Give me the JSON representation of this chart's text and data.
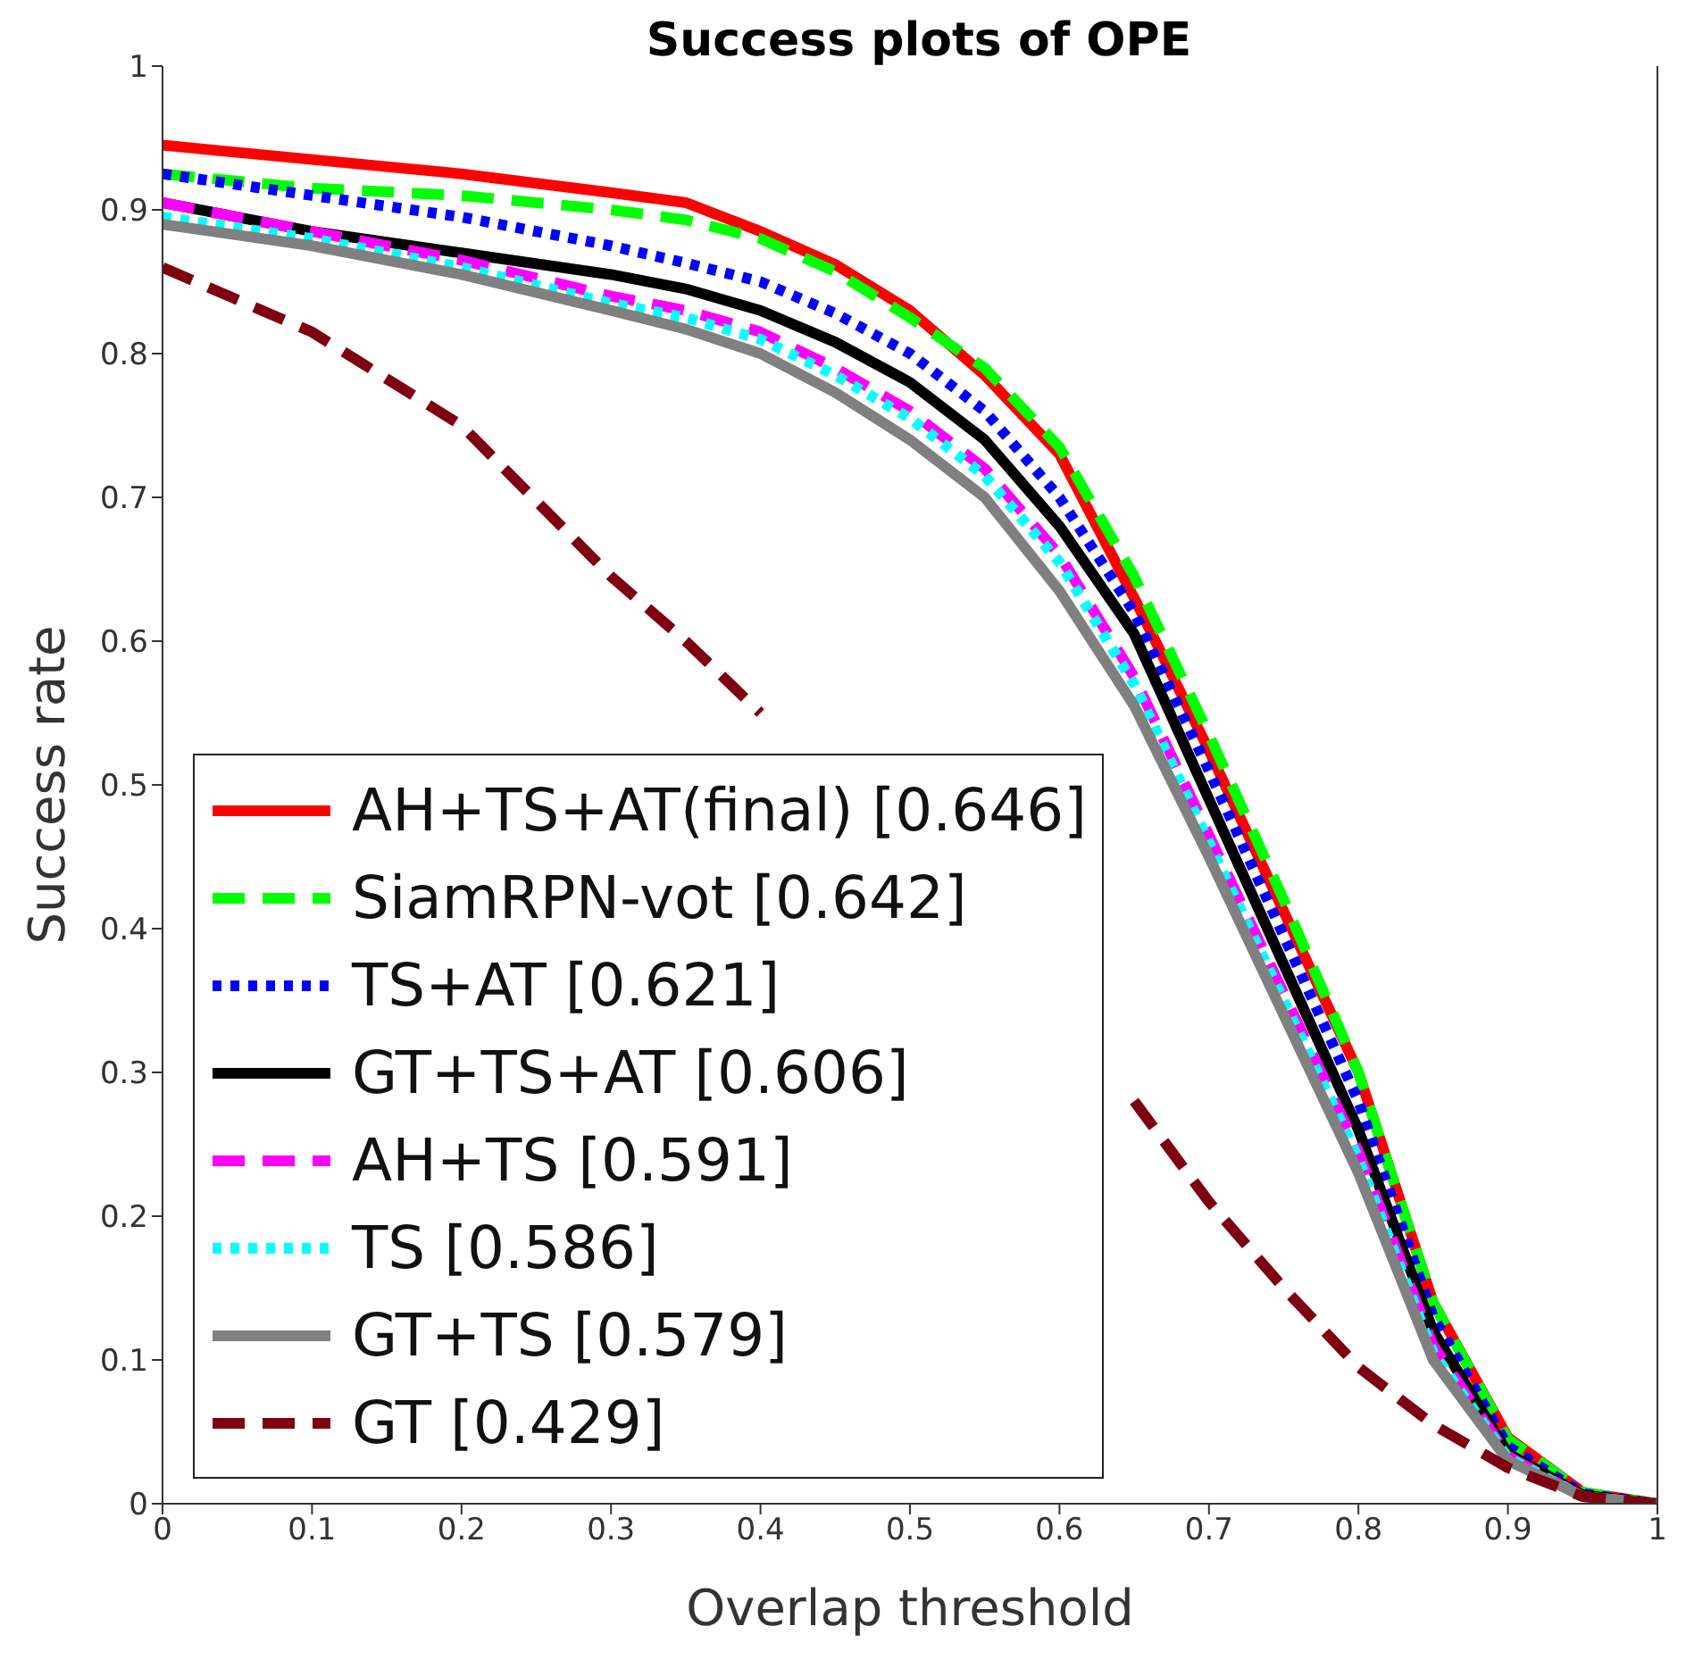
{
  "chart_data": {
    "type": "line",
    "title": "Success plots of OPE",
    "xlabel": "Overlap threshold",
    "ylabel": "Success rate",
    "x": [
      0,
      0.1,
      0.2,
      0.3,
      0.35,
      0.4,
      0.45,
      0.5,
      0.55,
      0.6,
      0.65,
      0.7,
      0.75,
      0.8,
      0.85,
      0.9,
      0.95,
      1
    ],
    "series": [
      {
        "name": "AH+TS+AT(final) [0.646]",
        "color": "#ff0000",
        "line_style": "solid",
        "values": [
          0.945,
          0.935,
          0.925,
          0.912,
          0.905,
          0.885,
          0.862,
          0.83,
          0.785,
          0.73,
          0.63,
          0.524,
          0.412,
          0.3,
          0.14,
          0.046,
          0.008,
          0
        ]
      },
      {
        "name": "SiamRPN-vot [0.642]",
        "color": "#00ff00",
        "line_style": "dashed",
        "values": [
          0.925,
          0.915,
          0.91,
          0.9,
          0.893,
          0.88,
          0.857,
          0.825,
          0.79,
          0.735,
          0.645,
          0.535,
          0.42,
          0.3,
          0.14,
          0.045,
          0.008,
          0
        ]
      },
      {
        "name": "TS+AT [0.621]",
        "color": "#0000ff",
        "line_style": "dotted",
        "values": [
          0.925,
          0.91,
          0.895,
          0.875,
          0.863,
          0.85,
          0.828,
          0.8,
          0.76,
          0.7,
          0.62,
          0.51,
          0.395,
          0.28,
          0.13,
          0.04,
          0.007,
          0
        ]
      },
      {
        "name": "GT+TS+AT [0.606]",
        "color": "#000000",
        "line_style": "solid",
        "values": [
          0.905,
          0.885,
          0.87,
          0.855,
          0.845,
          0.83,
          0.808,
          0.78,
          0.74,
          0.68,
          0.605,
          0.49,
          0.375,
          0.26,
          0.12,
          0.035,
          0.006,
          0
        ]
      },
      {
        "name": "AH+TS [0.591]",
        "color": "#ff00ff",
        "line_style": "dashed",
        "values": [
          0.905,
          0.885,
          0.865,
          0.84,
          0.83,
          0.815,
          0.79,
          0.76,
          0.72,
          0.66,
          0.575,
          0.465,
          0.355,
          0.245,
          0.11,
          0.033,
          0.005,
          0
        ]
      },
      {
        "name": "TS [0.586]",
        "color": "#00ffff",
        "line_style": "dotted",
        "values": [
          0.895,
          0.88,
          0.86,
          0.835,
          0.825,
          0.81,
          0.785,
          0.755,
          0.715,
          0.655,
          0.57,
          0.46,
          0.35,
          0.24,
          0.105,
          0.032,
          0.005,
          0
        ]
      },
      {
        "name": "GT+TS [0.579]",
        "color": "#808080",
        "line_style": "solid",
        "values": [
          0.89,
          0.875,
          0.855,
          0.83,
          0.817,
          0.8,
          0.773,
          0.74,
          0.7,
          0.635,
          0.555,
          0.45,
          0.34,
          0.23,
          0.1,
          0.03,
          0.005,
          0
        ]
      },
      {
        "name": "GT [0.429]",
        "color": "#7f0010",
        "line_style": "dashed",
        "values": [
          0.86,
          0.815,
          0.75,
          0.645,
          0.6,
          0.55,
          null,
          null,
          null,
          null,
          0.28,
          0.21,
          0.15,
          0.095,
          0.055,
          0.025,
          0.005,
          0
        ]
      }
    ],
    "xlim": [
      0,
      1
    ],
    "xticks": [
      0,
      0.1,
      0.2,
      0.3,
      0.4,
      0.5,
      0.6,
      0.7,
      0.8,
      0.9,
      1
    ],
    "ylim": [
      0,
      1
    ],
    "yticks": [
      0,
      0.1,
      0.2,
      0.3,
      0.4,
      0.5,
      0.6,
      0.7,
      0.8,
      0.9,
      1
    ],
    "grid": false,
    "legend": "bottom left",
    "marker": "none"
  }
}
